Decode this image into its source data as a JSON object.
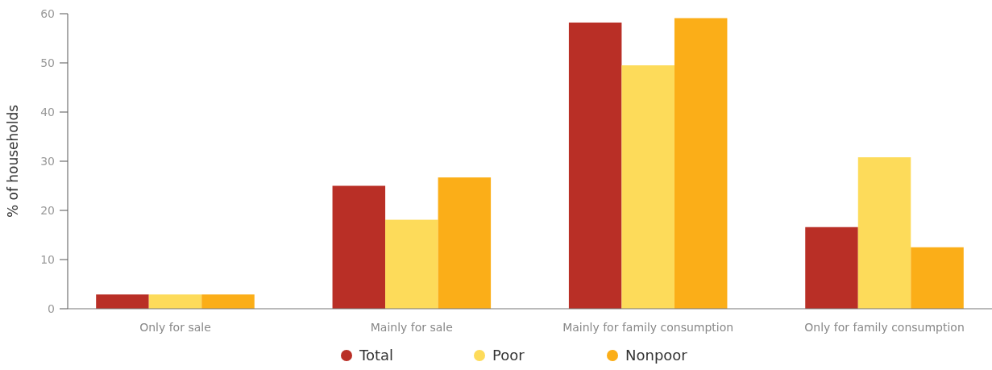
{
  "chart_data": {
    "type": "bar",
    "ylabel": "% of households",
    "categories": [
      "Only for sale",
      "Mainly for sale",
      "Mainly for family consumption",
      "Only for family consumption"
    ],
    "series": [
      {
        "name": "Total",
        "color": "#b92f26",
        "values": [
          2.9,
          25.0,
          58.2,
          16.6
        ]
      },
      {
        "name": "Poor",
        "color": "#fddb5a",
        "values": [
          2.9,
          18.1,
          49.5,
          30.8
        ]
      },
      {
        "name": "Nonpoor",
        "color": "#fbae18",
        "values": [
          2.9,
          26.7,
          59.1,
          12.5
        ]
      }
    ],
    "ylim": [
      0,
      60
    ],
    "yticks": [
      0,
      10,
      20,
      30,
      40,
      50,
      60
    ],
    "grid": false,
    "legend": "bottom"
  }
}
